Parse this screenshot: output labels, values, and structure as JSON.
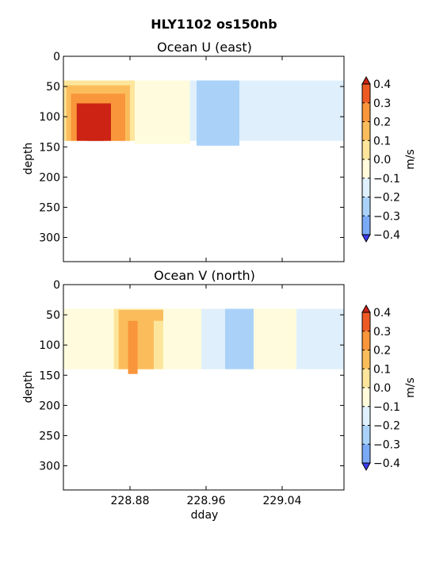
{
  "figure_title": "HLY1102 os150nb",
  "colors": {
    "levels": [
      "#3a3af0",
      "#4a7cf4",
      "#7aaaf6",
      "#aad2f9",
      "#dff0fc",
      "#fffbdc",
      "#fde69c",
      "#fbbd5c",
      "#f9953a",
      "#ee5a24",
      "#cc2315"
    ],
    "nodata": "#ffffff",
    "frame": "#000000"
  },
  "chart_data": [
    {
      "type": "heatmap",
      "title": "Ocean U (east)",
      "xlabel": "",
      "ylabel": "depth",
      "colorbar_label": "m/s",
      "xlim": [
        228.81,
        229.105
      ],
      "ylim": [
        340,
        0
      ],
      "x_ticks": [
        228.88,
        228.96,
        229.04
      ],
      "x_tick_labels": [
        "",
        "",
        ""
      ],
      "y_ticks": [
        0,
        50,
        100,
        150,
        200,
        250,
        300
      ],
      "y_tick_labels": [
        "0",
        "50",
        "100",
        "150",
        "200",
        "250",
        "300"
      ],
      "levels": [
        -0.4,
        -0.3,
        -0.2,
        -0.1,
        0.0,
        0.1,
        0.2,
        0.3,
        0.4
      ],
      "colorbar_tick_labels": [
        "0.4",
        "0.3",
        "0.2",
        "0.1",
        "0.0",
        "−0.1",
        "−0.2",
        "−0.3",
        "−0.4"
      ],
      "depth_range": [
        40,
        140
      ],
      "grid": false,
      "regions": [
        {
          "x": [
            228.81,
            228.885
          ],
          "depth": [
            40,
            140
          ],
          "value": 0.15
        },
        {
          "x": [
            228.813,
            228.88
          ],
          "depth": [
            48,
            140
          ],
          "value": 0.25
        },
        {
          "x": [
            228.818,
            228.875
          ],
          "depth": [
            62,
            140
          ],
          "value": 0.35
        },
        {
          "x": [
            228.824,
            228.86
          ],
          "depth": [
            78,
            140
          ],
          "value": 0.45
        },
        {
          "x": [
            228.835,
            228.852
          ],
          "depth": [
            85,
            140
          ],
          "value": 0.5
        },
        {
          "x": [
            228.885,
            228.943
          ],
          "depth": [
            40,
            145
          ],
          "value": 0.05
        },
        {
          "x": [
            228.943,
            228.95
          ],
          "depth": [
            40,
            140
          ],
          "value": -0.05
        },
        {
          "x": [
            228.95,
            228.995
          ],
          "depth": [
            40,
            148
          ],
          "value": -0.15
        },
        {
          "x": [
            228.995,
            229.04
          ],
          "depth": [
            40,
            140
          ],
          "value": -0.05
        },
        {
          "x": [
            229.04,
            229.105
          ],
          "depth": [
            40,
            140
          ],
          "value": -0.05
        }
      ]
    },
    {
      "type": "heatmap",
      "title": "Ocean V (north)",
      "xlabel": "dday",
      "ylabel": "depth",
      "colorbar_label": "m/s",
      "xlim": [
        228.81,
        229.105
      ],
      "ylim": [
        340,
        0
      ],
      "x_ticks": [
        228.88,
        228.96,
        229.04
      ],
      "x_tick_labels": [
        "228.88",
        "228.96",
        "229.04"
      ],
      "y_ticks": [
        0,
        50,
        100,
        150,
        200,
        250,
        300
      ],
      "y_tick_labels": [
        "0",
        "50",
        "100",
        "150",
        "200",
        "250",
        "300"
      ],
      "levels": [
        -0.4,
        -0.3,
        -0.2,
        -0.1,
        0.0,
        0.1,
        0.2,
        0.3,
        0.4
      ],
      "colorbar_tick_labels": [
        "0.4",
        "0.3",
        "0.2",
        "0.1",
        "0.0",
        "−0.1",
        "−0.2",
        "−0.3",
        "−0.4"
      ],
      "depth_range": [
        40,
        140
      ],
      "grid": false,
      "regions": [
        {
          "x": [
            228.81,
            228.863
          ],
          "depth": [
            40,
            140
          ],
          "value": 0.05
        },
        {
          "x": [
            228.863,
            228.915
          ],
          "depth": [
            40,
            140
          ],
          "value": 0.15
        },
        {
          "x": [
            228.868,
            228.905
          ],
          "depth": [
            42,
            140
          ],
          "value": 0.25
        },
        {
          "x": [
            228.878,
            228.888
          ],
          "depth": [
            60,
            148
          ],
          "value": 0.35
        },
        {
          "x": [
            228.9,
            228.918
          ],
          "depth": [
            42,
            60
          ],
          "value": 0.25
        },
        {
          "x": [
            228.915,
            228.955
          ],
          "depth": [
            40,
            140
          ],
          "value": 0.05
        },
        {
          "x": [
            228.955,
            228.98
          ],
          "depth": [
            40,
            140
          ],
          "value": -0.05
        },
        {
          "x": [
            228.98,
            229.01
          ],
          "depth": [
            40,
            140
          ],
          "value": -0.15
        },
        {
          "x": [
            229.01,
            229.055
          ],
          "depth": [
            40,
            140
          ],
          "value": 0.05
        },
        {
          "x": [
            229.055,
            229.105
          ],
          "depth": [
            40,
            140
          ],
          "value": -0.05
        }
      ]
    }
  ]
}
